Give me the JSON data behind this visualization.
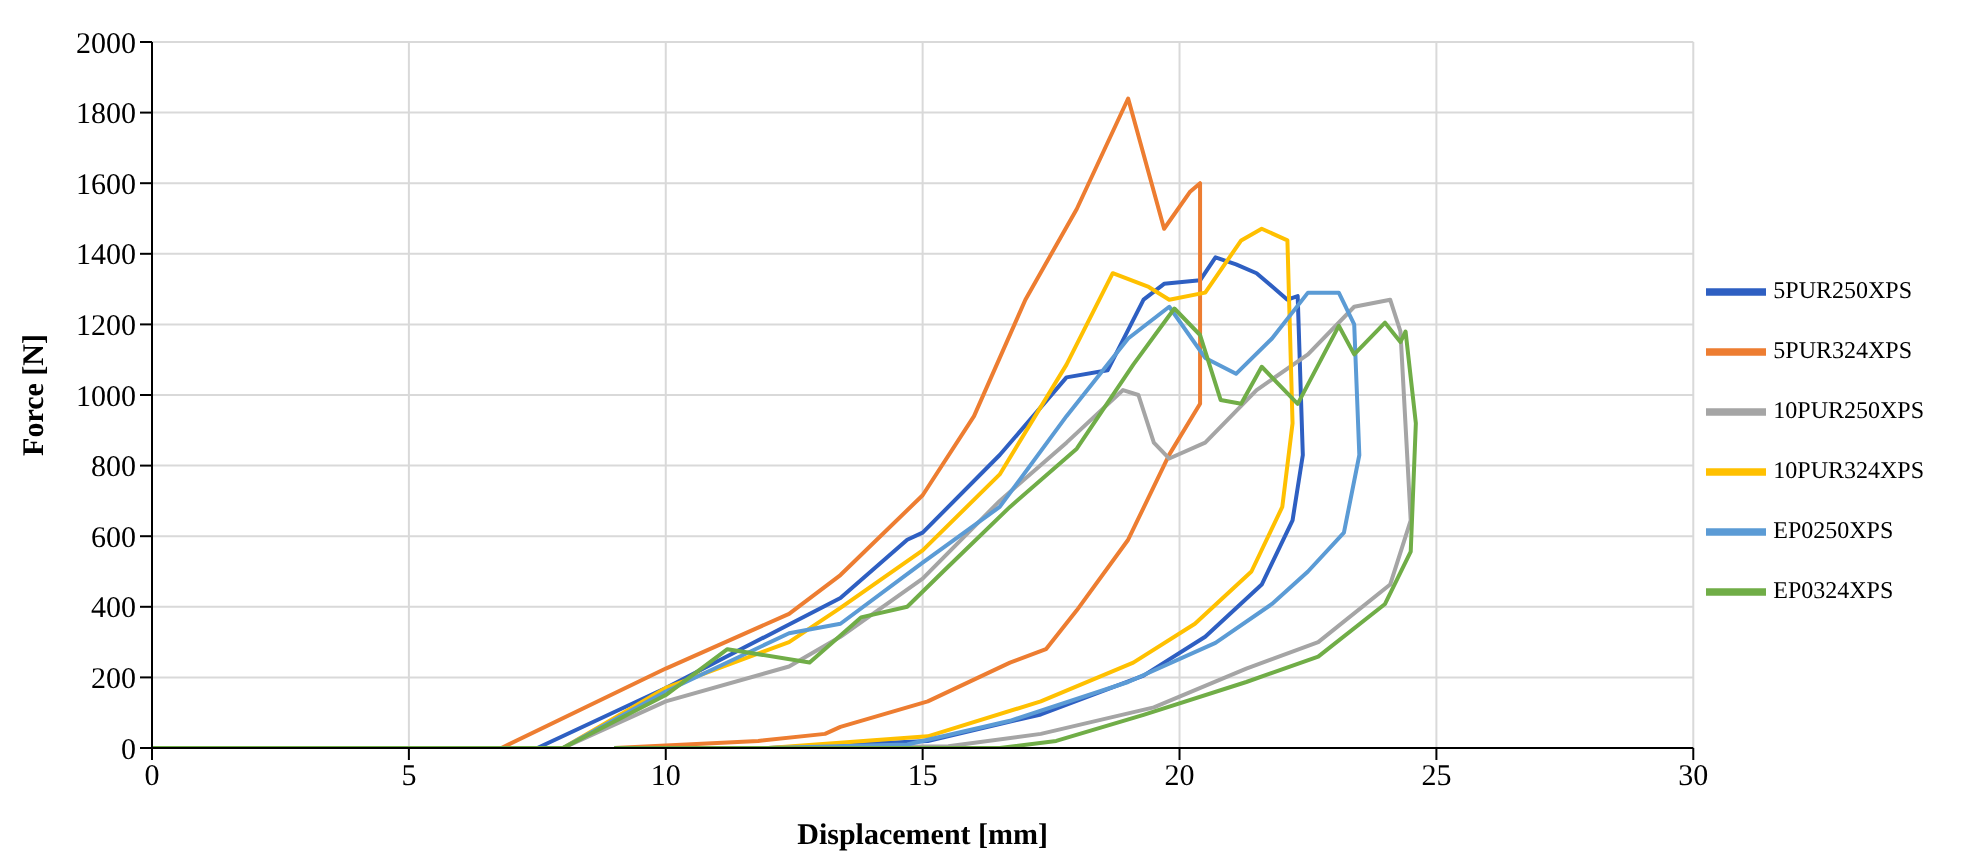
{
  "chart_data": {
    "type": "line",
    "xlabel": "Displacement [mm]",
    "ylabel": "Force [N]",
    "xlim": [
      0,
      30
    ],
    "xticks": [
      0,
      5,
      10,
      15,
      20,
      25,
      30
    ],
    "ylim": [
      0,
      2000
    ],
    "yticks": [
      0,
      200,
      400,
      600,
      800,
      1000,
      1200,
      1400,
      1600,
      1800,
      2000
    ],
    "grid": true,
    "legend": "right",
    "marker": "none",
    "line_style": "solid",
    "series": [
      {
        "name": "5PUR250XPS",
        "color": "#2e5fc2",
        "x": [
          0,
          5,
          7.5,
          10,
          12.4,
          13.4,
          14.7,
          15,
          16.5,
          17.8,
          18.6,
          19.3,
          19.7,
          20.4,
          20.7,
          21.1,
          21.5,
          22.1,
          22.3,
          22.4,
          22.2,
          21.6,
          20.5,
          19.3,
          17.3,
          15.1,
          12,
          9
        ],
        "values": [
          0,
          0,
          0,
          170,
          350,
          425,
          590,
          610,
          830,
          1050,
          1070,
          1270,
          1315,
          1325,
          1390,
          1370,
          1345,
          1270,
          1280,
          830,
          645,
          463,
          315,
          205,
          95,
          20,
          0,
          0
        ]
      },
      {
        "name": "5PUR324XPS",
        "color": "#ed7d31",
        "x": [
          0,
          5,
          6.8,
          10,
          12.4,
          13.4,
          15,
          16,
          17,
          18,
          19,
          19.7,
          20.2,
          20.4,
          20.4,
          19.8,
          19,
          18,
          17.4,
          16.7,
          15.1,
          13.4,
          13.1,
          11.8,
          9
        ],
        "values": [
          0,
          0,
          0,
          225,
          380,
          490,
          716,
          940,
          1270,
          1527,
          1840,
          1471,
          1575,
          1600,
          975,
          831,
          590,
          390,
          280,
          242,
          132,
          60,
          40,
          20,
          0
        ]
      },
      {
        "name": "10PUR250XPS",
        "color": "#a5a5a5",
        "x": [
          0,
          5,
          8,
          10,
          12.4,
          13.4,
          15,
          16.5,
          17.8,
          18.9,
          19.2,
          19.5,
          19.8,
          20.5,
          21.5,
          22.5,
          23.4,
          24.1,
          24.3,
          24.5,
          24.1,
          22.7,
          21.3,
          19.5,
          17.3,
          15.5,
          12,
          9
        ],
        "values": [
          0,
          0,
          0,
          132,
          231,
          315,
          480,
          700,
          865,
          1014,
          1000,
          865,
          820,
          865,
          1014,
          1115,
          1250,
          1270,
          1180,
          645,
          463,
          300,
          225,
          115,
          40,
          5,
          0,
          0
        ]
      },
      {
        "name": "10PUR324XPS",
        "color": "#ffc000",
        "x": [
          0,
          5,
          8,
          10,
          12.4,
          13.4,
          15,
          16.5,
          17.8,
          18.7,
          19.4,
          19.8,
          20.5,
          21.2,
          21.6,
          22.1,
          22.2,
          22,
          21.4,
          20.3,
          19.1,
          17.3,
          15.1,
          12,
          9
        ],
        "values": [
          0,
          0,
          0,
          170,
          300,
          397,
          560,
          775,
          1086,
          1345,
          1306,
          1270,
          1290,
          1438,
          1471,
          1438,
          920,
          683,
          500,
          352,
          242,
          132,
          33,
          0,
          0
        ]
      },
      {
        "name": "EP0250XPS",
        "color": "#5b9bd5",
        "x": [
          0,
          5,
          8,
          10,
          12.4,
          13.4,
          15,
          16.5,
          17.8,
          19,
          19.8,
          20.5,
          21.1,
          21.8,
          22.5,
          23.1,
          23.4,
          23.5,
          23.2,
          22.5,
          21.8,
          20.7,
          19,
          16.7,
          14.7,
          12,
          9
        ],
        "values": [
          0,
          0,
          0,
          160,
          325,
          352,
          525,
          683,
          940,
          1160,
          1250,
          1105,
          1060,
          1160,
          1290,
          1290,
          1200,
          830,
          610,
          500,
          408,
          298,
          187,
          77,
          10,
          0,
          0
        ]
      },
      {
        "name": "EP0324XPS",
        "color": "#70ad47",
        "x": [
          0,
          5,
          8,
          10,
          11.2,
          12.8,
          13.8,
          14.7,
          15.4,
          16.7,
          18,
          19.1,
          19.9,
          20.4,
          20.8,
          21.2,
          21.6,
          22.3,
          23.1,
          23.4,
          24,
          24.3,
          24.4,
          24.6,
          24.5,
          24,
          22.7,
          21.3,
          19.3,
          17.6,
          16.5,
          12,
          9
        ],
        "values": [
          0,
          0,
          0,
          150,
          280,
          242,
          370,
          400,
          500,
          683,
          848,
          1086,
          1245,
          1170,
          986,
          975,
          1080,
          975,
          1196,
          1115,
          1205,
          1150,
          1180,
          920,
          556,
          408,
          259,
          187,
          94,
          20,
          0,
          0,
          0
        ]
      }
    ]
  }
}
